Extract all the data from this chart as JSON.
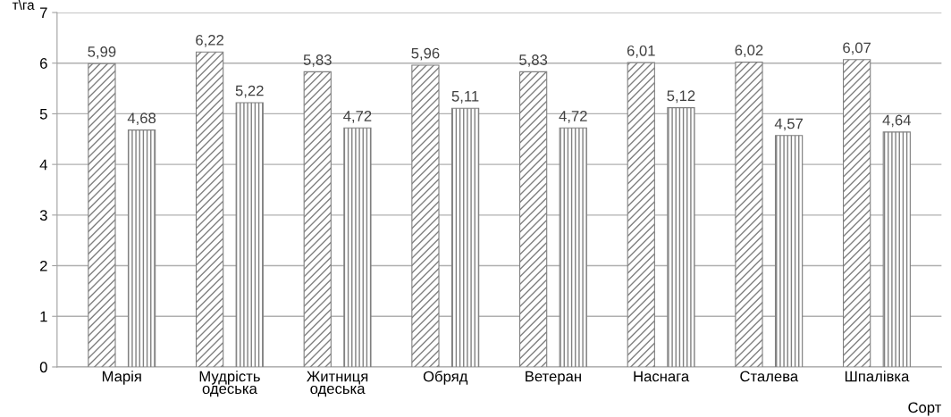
{
  "chart_data": {
    "type": "bar",
    "xlabel": "Сорт",
    "ylabel": "т\\га",
    "categories": [
      "Марія",
      "Мудрість\nодеська",
      "Житниця\nодеська",
      "Обряд",
      "Ветеран",
      "Наснага",
      "Сталева",
      "Шпалівка"
    ],
    "series": [
      {
        "color": "#808080",
        "values": [
          5.99,
          6.22,
          5.83,
          5.96,
          5.83,
          6.01,
          6.02,
          6.07
        ],
        "value_labels": [
          "5,99",
          "6,22",
          "5,83",
          "5,96",
          "5,83",
          "6,01",
          "6,02",
          "6,07"
        ]
      },
      {
        "color": "#808080",
        "values": [
          4.68,
          5.22,
          4.72,
          5.11,
          4.72,
          5.12,
          4.57,
          4.64
        ],
        "value_labels": [
          "4,68",
          "5,22",
          "4,72",
          "5,11",
          "4,72",
          "5,12",
          "4,57",
          "4,64"
        ]
      }
    ],
    "ylim": [
      0,
      7
    ],
    "yticks": [
      0,
      1,
      2,
      3,
      4,
      5,
      6,
      7
    ],
    "grid": "y"
  }
}
